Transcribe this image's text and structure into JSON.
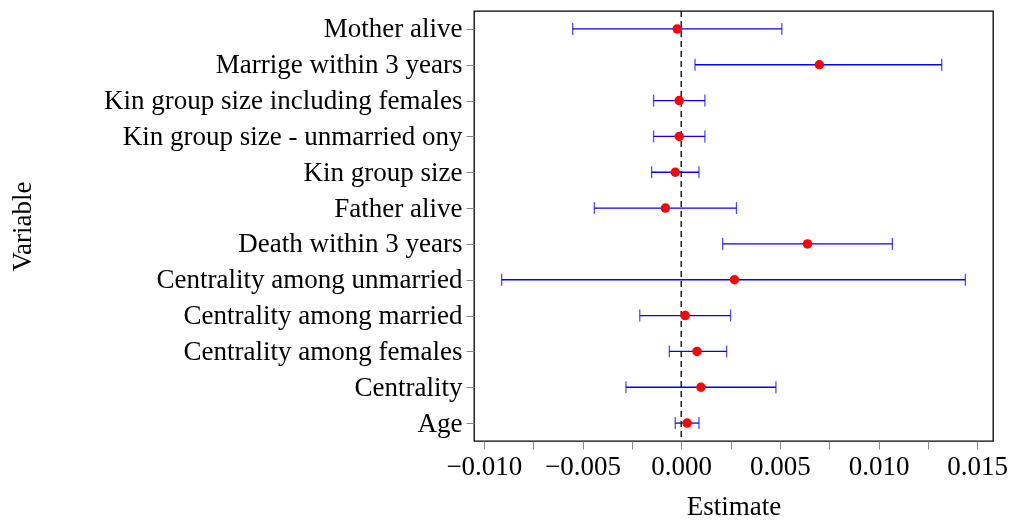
{
  "chart_data": {
    "type": "scatter",
    "orientation": "horizontal",
    "xlabel": "Estimate",
    "ylabel": "Variable",
    "categories": [
      "Mother alive",
      "Marrige within 3 years",
      "Kin group size including females",
      "Kin group size - unmarried ony",
      "Kin group size",
      "Father alive",
      "Death within 3 years",
      "Centrality among unmarried",
      "Centrality among married",
      "Centrality among females",
      "Centrality",
      "Age"
    ],
    "series": [
      {
        "color": "#ff0000",
        "values": [
          -0.0002,
          0.007,
          -0.0001,
          -0.0001,
          -0.0003,
          -0.0008,
          0.0064,
          0.0027,
          0.0002,
          0.0008,
          0.001,
          0.0003
        ],
        "errors": [
          [
            -0.0055,
            0.0051
          ],
          [
            0.0007,
            0.0132
          ],
          [
            -0.0014,
            0.0012
          ],
          [
            -0.0014,
            0.0012
          ],
          [
            -0.0015,
            0.0009
          ],
          [
            -0.0044,
            0.0028
          ],
          [
            0.0021,
            0.0107
          ],
          [
            -0.0091,
            0.0144
          ],
          [
            -0.0021,
            0.0025
          ],
          [
            -0.0006,
            0.0023
          ],
          [
            -0.0028,
            0.0048
          ],
          [
            -0.0003,
            0.0009
          ]
        ]
      }
    ],
    "xlim": [
      -0.0105,
      0.0158
    ],
    "xticks": [
      {
        "value": -0.01,
        "label": "−0.010"
      },
      {
        "value": -0.0075,
        "label": null
      },
      {
        "value": -0.005,
        "label": "−0.005"
      },
      {
        "value": -0.0025,
        "label": null
      },
      {
        "value": 0,
        "label": "0.000"
      },
      {
        "value": 0.0025,
        "label": null
      },
      {
        "value": 0.005,
        "label": "0.005"
      },
      {
        "value": 0.0075,
        "label": null
      },
      {
        "value": 0.01,
        "label": "0.010"
      },
      {
        "value": 0.0125,
        "label": null
      },
      {
        "value": 0.015,
        "label": "0.015"
      }
    ],
    "ref_lines": [
      {
        "axis": "x",
        "value": 0,
        "label": null,
        "line_style": "dashed",
        "color": "#000000"
      }
    ],
    "grid": false,
    "marker": "circle"
  }
}
